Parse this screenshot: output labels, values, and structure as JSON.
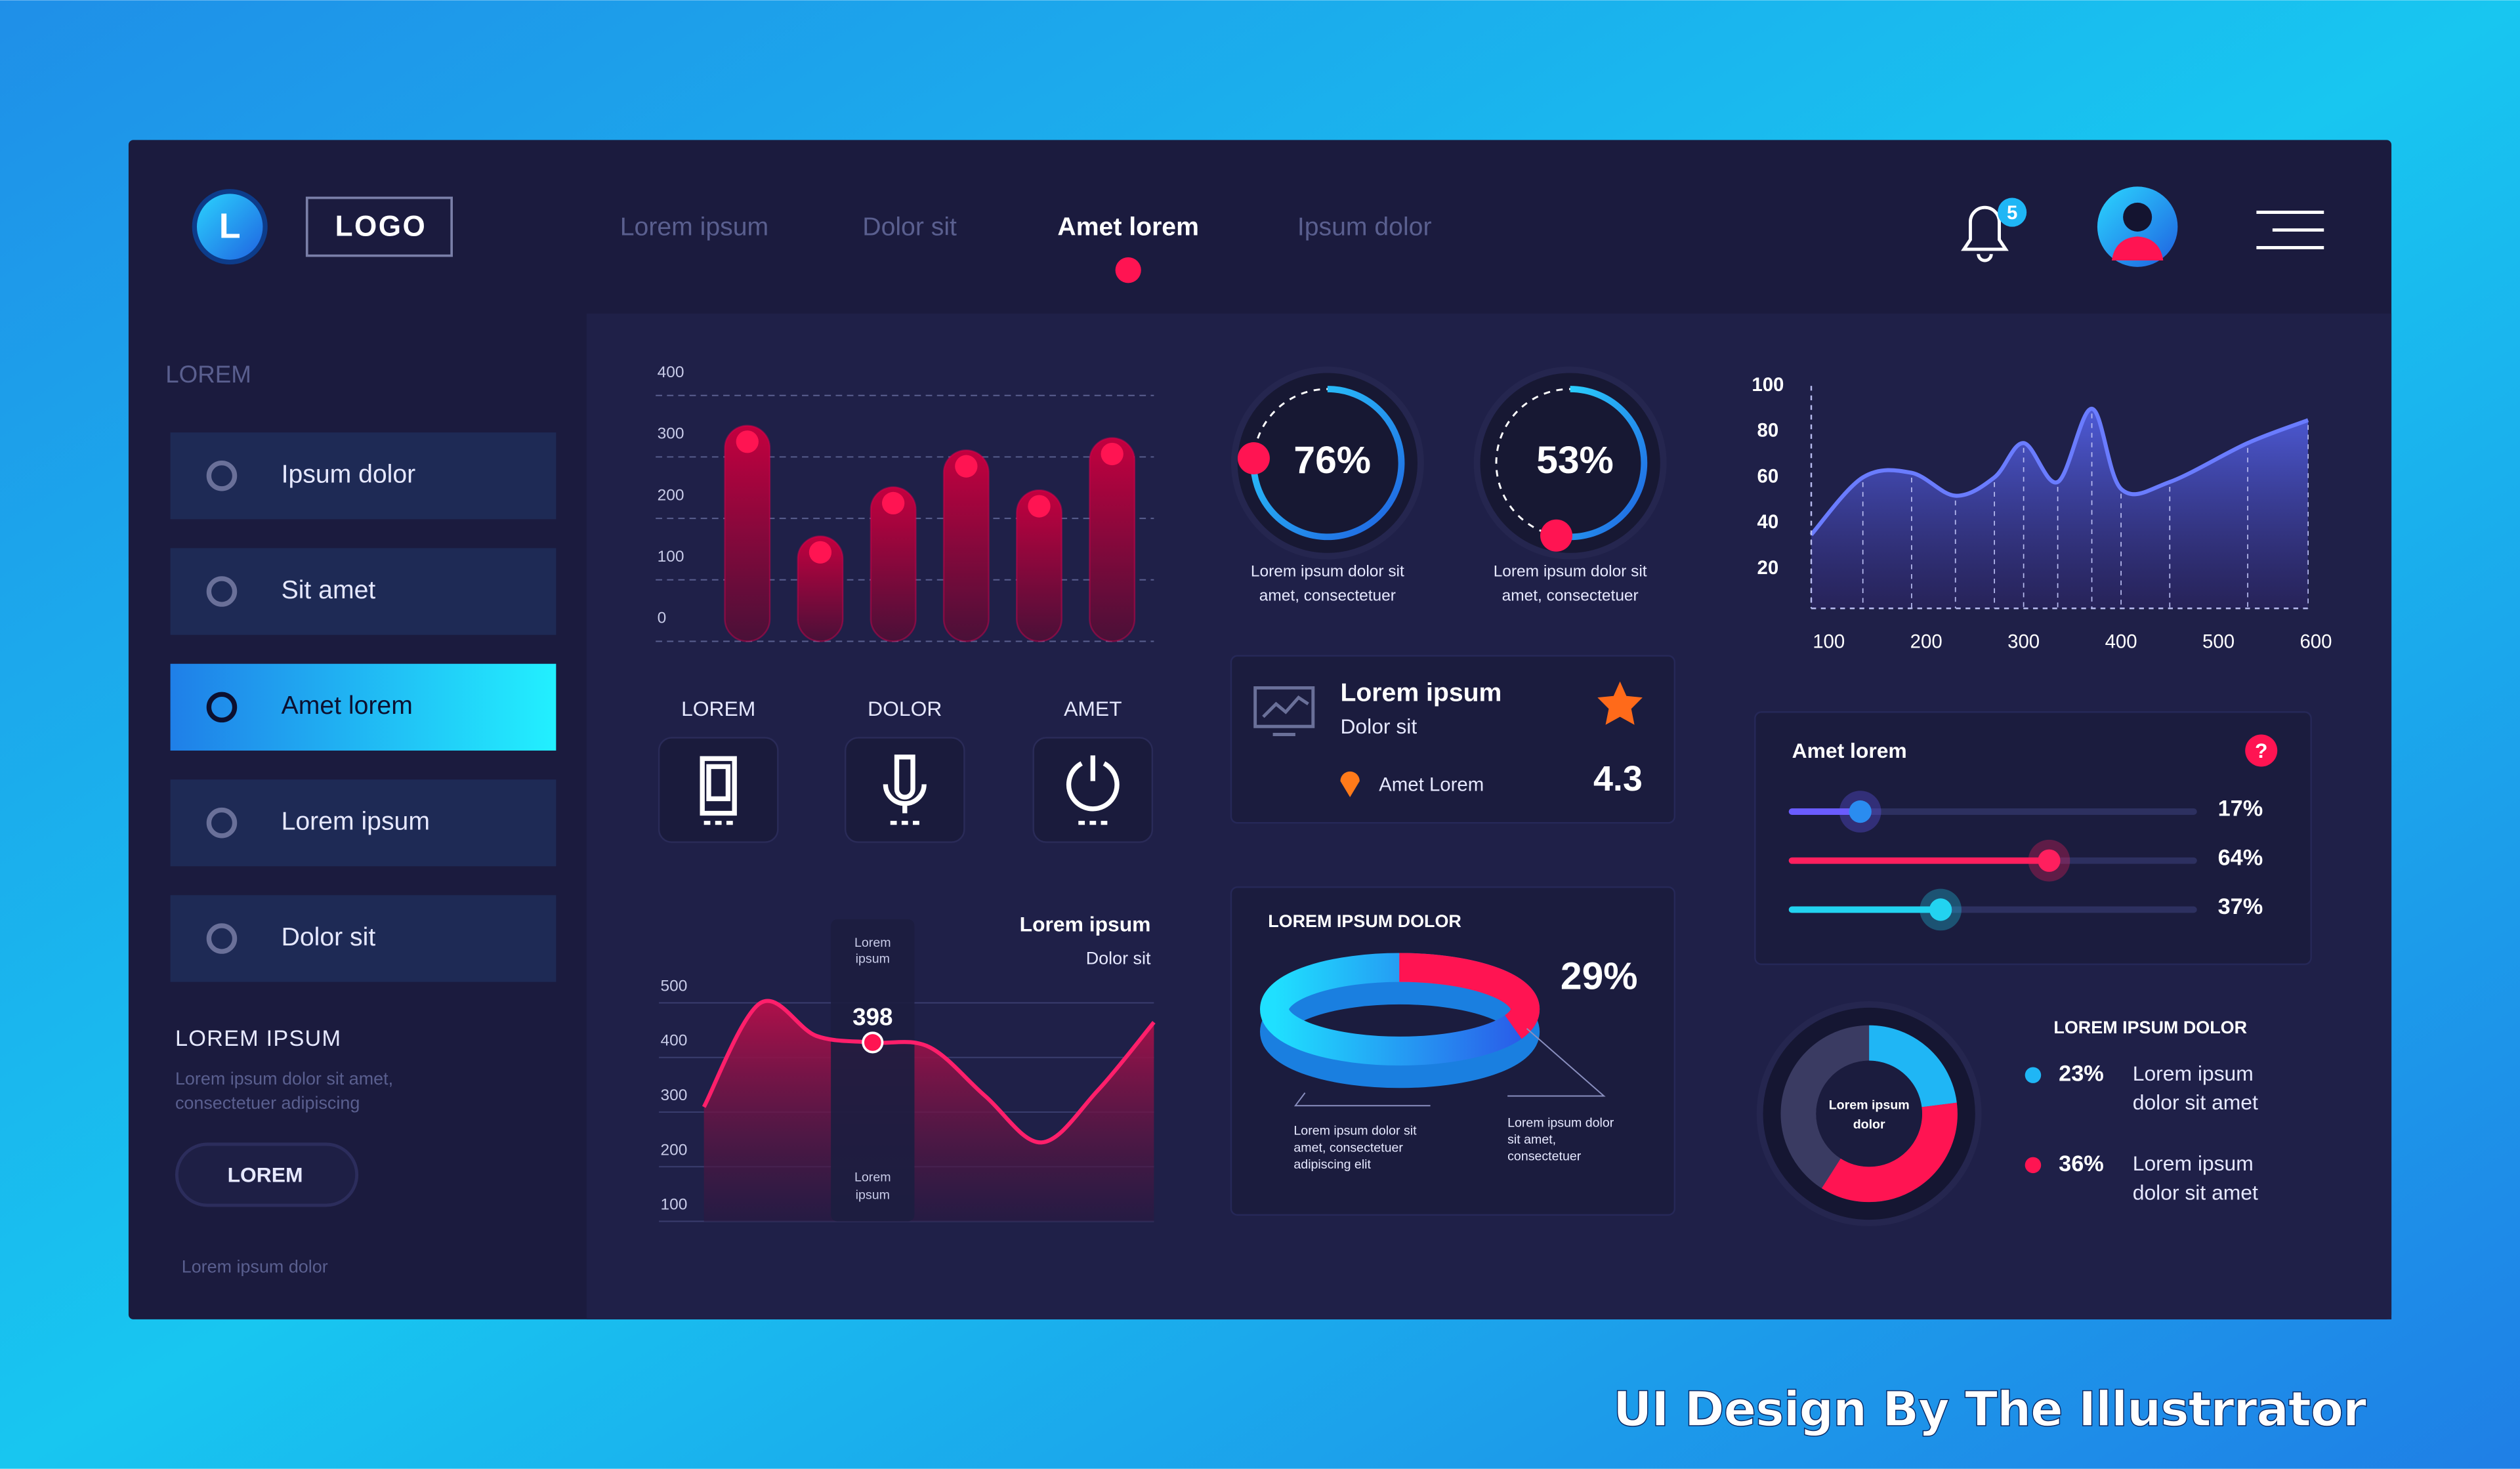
{
  "nav": {
    "logo_letter": "L",
    "logo": "LOGO",
    "items": [
      "Lorem ipsum",
      "Dolor sit",
      "Amet lorem",
      "Ipsum dolor"
    ],
    "active": 2,
    "notifications": 5
  },
  "sidebar": {
    "heading": "LOREM",
    "menu": [
      "Ipsum dolor",
      "Sit amet",
      "Amet lorem",
      "Lorem ipsum",
      "Dolor sit"
    ],
    "active": 2,
    "section_title": "LOREM IPSUM",
    "section_text": [
      "Lorem ipsum dolor sit amet,",
      "consectetuer adipiscing"
    ],
    "button": "LOREM",
    "footer": "Lorem ipsum dolor"
  },
  "bar_chart": {
    "type": "bar",
    "values": [
      330,
      150,
      230,
      290,
      225,
      310
    ],
    "ylim": [
      0,
      400
    ],
    "yticks": [
      0,
      100,
      200,
      300,
      400
    ],
    "color": "#e8004f"
  },
  "buttons": [
    "LOREM",
    "DOLOR",
    "AMET"
  ],
  "wave_chart": {
    "type": "line",
    "title": "Lorem ipsum",
    "subtitle": "Dolor sit",
    "values": [
      280,
      470,
      410,
      398,
      390,
      300,
      215,
      310,
      435
    ],
    "ylim": [
      70,
      500
    ],
    "yticks": [
      100,
      200,
      300,
      400,
      500
    ],
    "highlight": 3,
    "highlight_top": [
      "Lorem",
      "ipsum"
    ],
    "highlight_bottom": [
      "Lorem",
      "ipsum"
    ],
    "color": "#ff1f6b"
  },
  "gauges": {
    "type": "gauge",
    "values": [
      76,
      53
    ],
    "value_labels": [
      "76%",
      "53%"
    ],
    "captions": [
      [
        "Lorem ipsum dolor sit",
        "amet, consectetuer"
      ],
      [
        "Lorem ipsum dolor sit",
        "amet, consectetuer"
      ]
    ]
  },
  "rating_card": {
    "title": "Lorem ipsum",
    "subtitle": "Dolor sit",
    "location": "Amet Lorem",
    "rating": 4.3
  },
  "ring_card": {
    "type": "ring",
    "title": "LOREM IPSUM DOLOR",
    "value": 29,
    "value_label": "29%",
    "notes": [
      [
        "Lorem ipsum dolor sit",
        "amet, consectetuer",
        "adipiscing elit"
      ],
      [
        "Lorem ipsum dolor",
        "sit amet,",
        "consectetuer"
      ]
    ]
  },
  "area_chart": {
    "type": "area",
    "x": [
      82,
      135,
      185,
      230,
      270,
      300,
      335,
      370,
      400,
      450,
      530,
      592
    ],
    "values": [
      35,
      60,
      62,
      52,
      60,
      75,
      58,
      90,
      55,
      58,
      75,
      85
    ],
    "xlim": [
      82,
      600
    ],
    "ylim": [
      0,
      100
    ],
    "xticks": [
      100,
      200,
      300,
      400,
      500,
      600
    ],
    "yticks": [
      20,
      40,
      60,
      80,
      100
    ]
  },
  "sliders": {
    "type": "slider",
    "title": "Amet lorem",
    "help": "?",
    "values": [
      17,
      64,
      37
    ],
    "value_labels": [
      "17%",
      "64%",
      "37%"
    ],
    "colors": [
      "#6a5cff",
      "#ff1f5e",
      "#22d3f0"
    ]
  },
  "donut": {
    "type": "donut",
    "title": "LOREM IPSUM DOLOR",
    "center": [
      "Lorem ipsum",
      "dolor"
    ],
    "values": [
      23,
      36
    ],
    "value_labels": [
      "23%",
      "36%"
    ],
    "colors": [
      "#1fb6f5",
      "#ff1452"
    ],
    "texts": [
      [
        "Lorem ipsum",
        "dolor sit amet"
      ],
      [
        "Lorem ipsum",
        "dolor sit amet"
      ]
    ]
  },
  "watermark": "UI Design By The Illustrrator"
}
